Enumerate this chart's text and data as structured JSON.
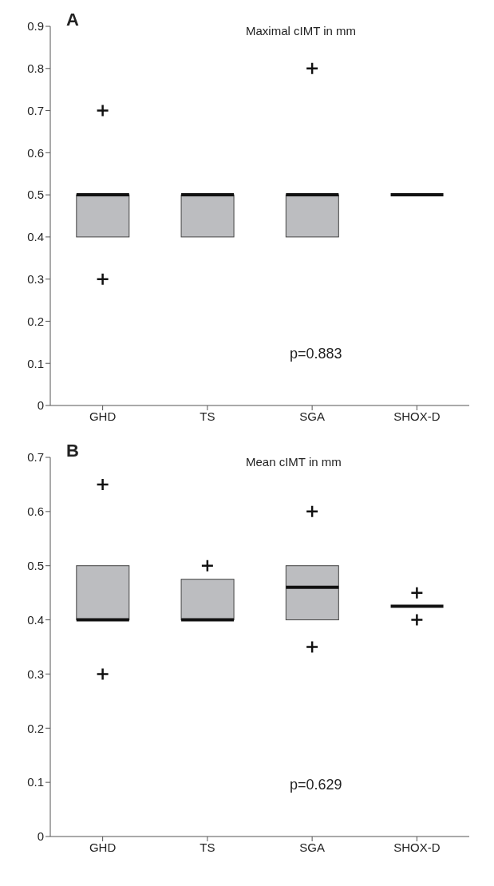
{
  "chart_data": [
    {
      "type": "box",
      "title": "Maximal cIMT in mm",
      "annotations": [
        "A",
        "p=0.883"
      ],
      "categories": [
        "GHD",
        "TS",
        "SGA",
        "SHOX-D"
      ],
      "colors": [
        "#bcbdc0",
        "#bcbdc0",
        "#bcbdc0",
        "#111111"
      ],
      "boxes": [
        {
          "low": 0.4,
          "q1": 0.4,
          "median": 0.5,
          "q3": 0.5,
          "high": 0.5
        },
        {
          "low": 0.4,
          "q1": 0.4,
          "median": 0.5,
          "q3": 0.5,
          "high": 0.5
        },
        {
          "low": 0.4,
          "q1": 0.4,
          "median": 0.5,
          "q3": 0.5,
          "high": 0.5
        },
        {
          "low": 0.5,
          "q1": 0.5,
          "median": 0.5,
          "q3": 0.5,
          "high": 0.5
        }
      ],
      "series": [
        {
          "type": "scatter",
          "color": "#111111",
          "values": [
            0.7,
            null,
            0.8,
            null
          ]
        },
        {
          "type": "scatter",
          "color": "#111111",
          "values": [
            0.3,
            null,
            null,
            null
          ]
        }
      ],
      "marker": "cross",
      "ylim": [
        0,
        0.9
      ],
      "yticks": [
        0,
        0.1,
        0.2,
        0.3,
        0.4,
        0.5,
        0.6,
        0.7,
        0.8,
        0.9
      ]
    },
    {
      "type": "box",
      "title": "Mean cIMT in mm",
      "annotations": [
        "B",
        "p=0.629"
      ],
      "categories": [
        "GHD",
        "TS",
        "SGA",
        "SHOX-D"
      ],
      "colors": [
        "#bcbdc0",
        "#bcbdc0",
        "#bcbdc0",
        "#111111"
      ],
      "boxes": [
        {
          "low": 0.4,
          "q1": 0.4,
          "median": 0.4,
          "q3": 0.5,
          "high": 0.5
        },
        {
          "low": 0.4,
          "q1": 0.4,
          "median": 0.4,
          "q3": 0.475,
          "high": 0.475
        },
        {
          "low": 0.4,
          "q1": 0.4,
          "median": 0.46,
          "q3": 0.5,
          "high": 0.5
        },
        {
          "low": 0.425,
          "q1": 0.425,
          "median": 0.425,
          "q3": 0.425,
          "high": 0.425
        }
      ],
      "series": [
        {
          "type": "scatter",
          "color": "#111111",
          "values": [
            0.65,
            0.5,
            0.6,
            0.45
          ]
        },
        {
          "type": "scatter",
          "color": "#111111",
          "values": [
            0.3,
            null,
            0.35,
            0.4
          ]
        }
      ],
      "marker": "cross",
      "ylim": [
        0,
        0.7
      ],
      "yticks": [
        0,
        0.1,
        0.2,
        0.3,
        0.4,
        0.5,
        0.6,
        0.7
      ]
    }
  ]
}
